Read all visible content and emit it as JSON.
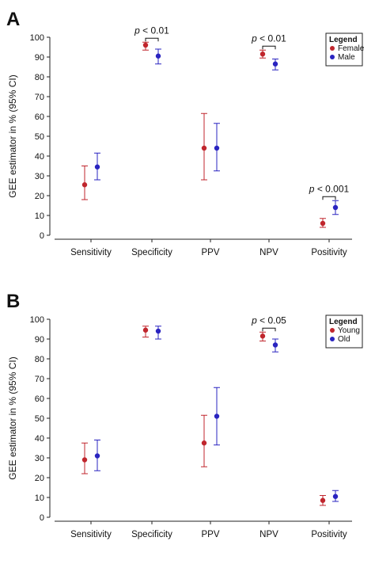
{
  "chart_data": [
    {
      "type": "scatter",
      "panel": "A",
      "ylabel": "GEE estimator in % (95% CI)",
      "ylim": [
        0,
        100
      ],
      "yticks": [
        0,
        10,
        20,
        30,
        40,
        50,
        60,
        70,
        80,
        90,
        100
      ],
      "categories": [
        "Sensitivity",
        "Specificity",
        "PPV",
        "NPV",
        "Positivity"
      ],
      "legend": {
        "title": "Legend",
        "placement": "top-right"
      },
      "series": [
        {
          "name": "Female",
          "color": "#c0262d",
          "values": [
            25.5,
            96,
            44,
            91.5,
            6
          ],
          "ci_lower": [
            18,
            93.5,
            28,
            89.5,
            4
          ],
          "ci_upper": [
            35,
            97.5,
            61.5,
            93.5,
            8.5
          ]
        },
        {
          "name": "Male",
          "color": "#2a24c0",
          "values": [
            34.5,
            90.5,
            44,
            86.5,
            14
          ],
          "ci_lower": [
            28,
            86.5,
            32.5,
            83.5,
            10.5
          ],
          "ci_upper": [
            41.5,
            94,
            56.5,
            89,
            17.5
          ]
        }
      ],
      "annotations": [
        {
          "category": "Specificity",
          "text": "p < 0.01",
          "bracket_at": 97.5
        },
        {
          "category": "NPV",
          "text": "p < 0.01",
          "bracket_at": 93.5
        },
        {
          "category": "Positivity",
          "text": "p < 0.001",
          "bracket_at": 17.5
        }
      ]
    },
    {
      "type": "scatter",
      "panel": "B",
      "ylabel": "GEE estimator in % (95% CI)",
      "ylim": [
        0,
        100
      ],
      "yticks": [
        0,
        10,
        20,
        30,
        40,
        50,
        60,
        70,
        80,
        90,
        100
      ],
      "categories": [
        "Sensitivity",
        "Specificity",
        "PPV",
        "NPV",
        "Positivity"
      ],
      "legend": {
        "title": "Legend",
        "placement": "top-right"
      },
      "series": [
        {
          "name": "Young",
          "color": "#c0262d",
          "values": [
            29,
            94.5,
            37.5,
            91.5,
            8.5
          ],
          "ci_lower": [
            22,
            91,
            25.5,
            89,
            6
          ],
          "ci_upper": [
            37.5,
            96.5,
            51.5,
            93.5,
            11
          ]
        },
        {
          "name": "Old",
          "color": "#2a24c0",
          "values": [
            31,
            94,
            51,
            87,
            10.5
          ],
          "ci_lower": [
            23.5,
            90,
            36.5,
            83.5,
            8
          ],
          "ci_upper": [
            39,
            96.5,
            65.5,
            90,
            13.5
          ]
        }
      ],
      "annotations": [
        {
          "category": "NPV",
          "text": "p < 0.05",
          "bracket_at": 93.5
        }
      ]
    }
  ]
}
